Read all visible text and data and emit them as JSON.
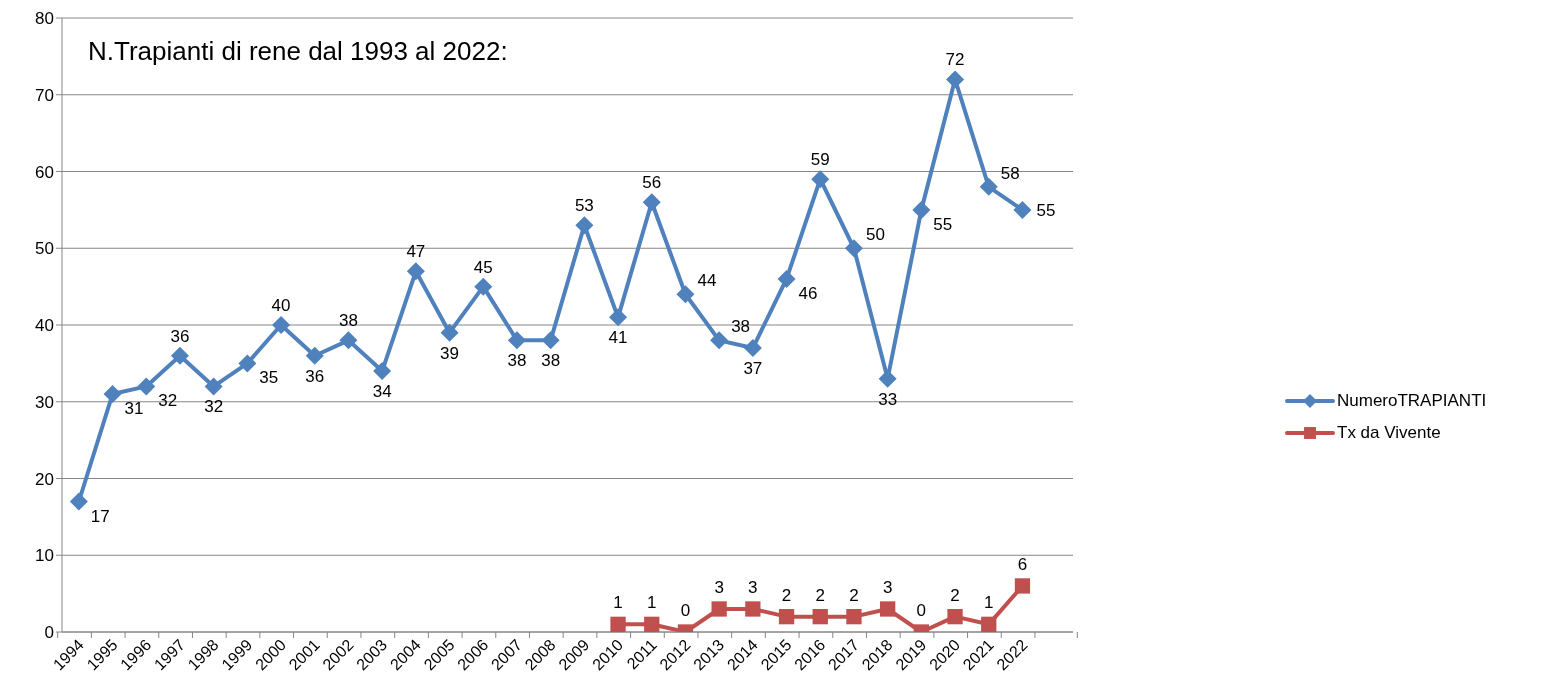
{
  "chart_data": {
    "type": "line",
    "title": "N.Trapianti di rene dal 1993 al 2022:",
    "categories": [
      "1994",
      "1995",
      "1996",
      "1997",
      "1998",
      "1999",
      "2000",
      "2001",
      "2002",
      "2003",
      "2004",
      "2005",
      "2006",
      "2007",
      "2008",
      "2009",
      "2010",
      "2011",
      "2012",
      "2013",
      "2014",
      "2015",
      "2016",
      "2017",
      "2018",
      "2019",
      "2020",
      "2021",
      "2022",
      null
    ],
    "series": [
      {
        "name": "NumeroTRAPIANTI",
        "color": "#4f81bd",
        "marker": "diamond",
        "values": [
          17,
          31,
          32,
          36,
          32,
          35,
          40,
          36,
          38,
          34,
          47,
          39,
          45,
          38,
          38,
          53,
          41,
          56,
          44,
          38,
          37,
          46,
          59,
          50,
          33,
          55,
          72,
          58,
          55,
          null
        ]
      },
      {
        "name": "Tx da Vivente",
        "color": "#c0504d",
        "marker": "square",
        "values": [
          null,
          null,
          null,
          null,
          null,
          null,
          null,
          null,
          null,
          null,
          null,
          null,
          null,
          null,
          null,
          null,
          1,
          1,
          0,
          3,
          3,
          2,
          2,
          2,
          3,
          0,
          2,
          1,
          6,
          null
        ]
      }
    ],
    "ylim": [
      0,
      80
    ],
    "yticks": [
      0,
      10,
      20,
      30,
      40,
      50,
      60,
      70,
      80
    ],
    "grid": "y",
    "legend": "right",
    "data_labels": true
  }
}
